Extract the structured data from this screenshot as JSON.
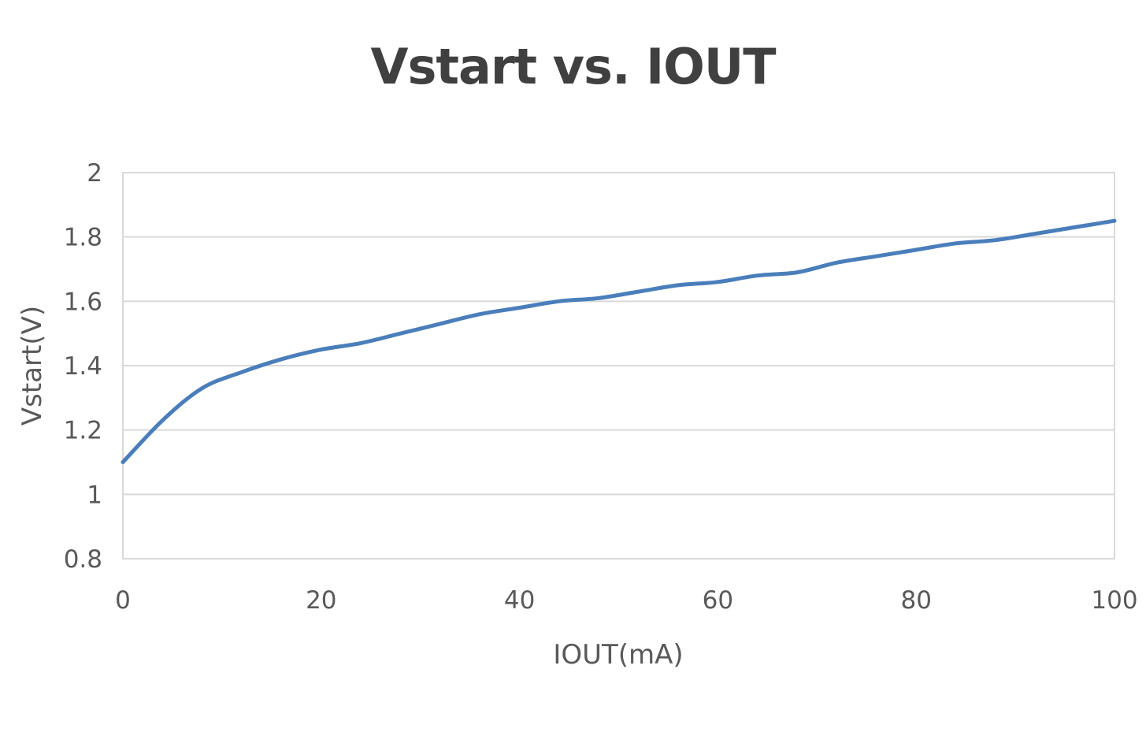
{
  "chart_data": {
    "type": "line",
    "title": "Vstart vs. IOUT",
    "xlabel": "IOUT(mA)",
    "ylabel": "Vstart(V)",
    "xlim": [
      0,
      100
    ],
    "ylim": [
      0.8,
      2
    ],
    "xticks": [
      "0",
      "20",
      "40",
      "60",
      "80",
      "100"
    ],
    "yticks": [
      "0.8",
      "1",
      "1.2",
      "1.4",
      "1.6",
      "1.8",
      "2"
    ],
    "grid": true,
    "legend": "none",
    "series": [
      {
        "color": "#4a7ebb",
        "x": [
          0,
          4,
          8,
          12,
          16,
          20,
          24,
          28,
          32,
          36,
          40,
          44,
          48,
          52,
          56,
          60,
          64,
          68,
          72,
          76,
          80,
          84,
          88,
          92,
          96,
          100
        ],
        "y": [
          1.1,
          1.23,
          1.33,
          1.38,
          1.42,
          1.45,
          1.47,
          1.5,
          1.53,
          1.56,
          1.58,
          1.6,
          1.61,
          1.63,
          1.65,
          1.66,
          1.68,
          1.69,
          1.72,
          1.74,
          1.76,
          1.78,
          1.79,
          1.81,
          1.83,
          1.85
        ]
      }
    ]
  }
}
